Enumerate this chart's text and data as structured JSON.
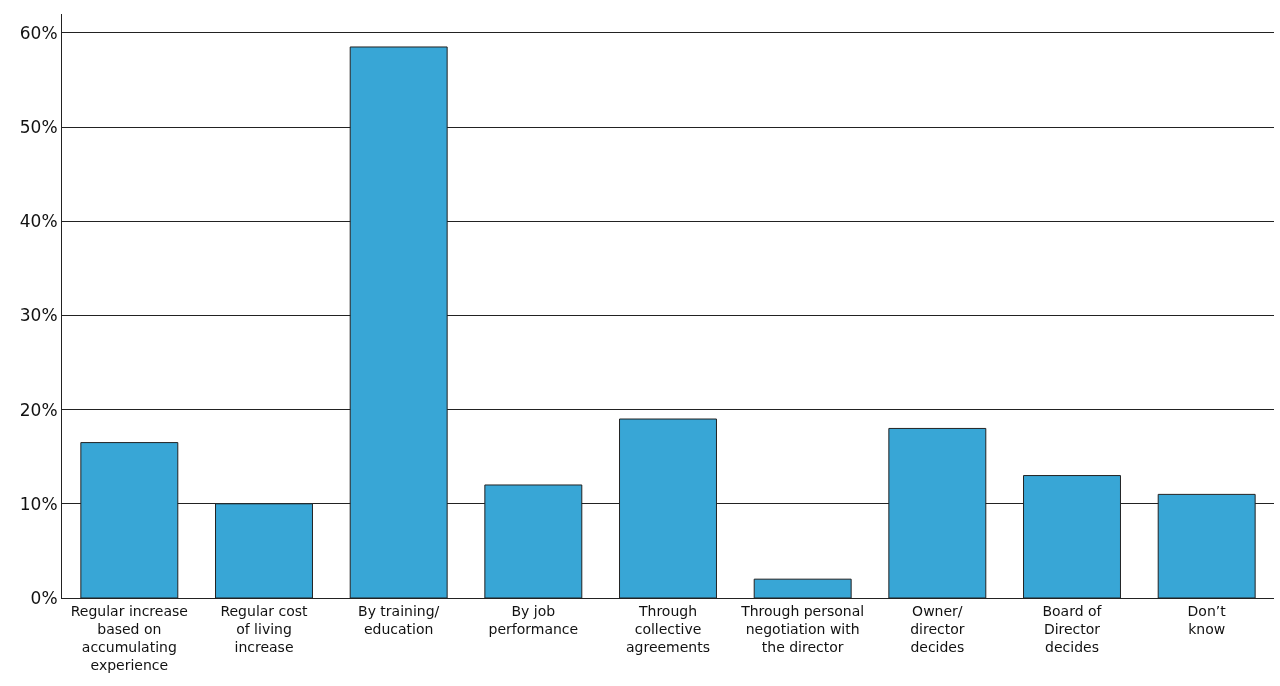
{
  "chart_data": {
    "type": "bar",
    "categories": [
      "Regular increase\nbased on\naccumulating\nexperience",
      "Regular cost\nof living\nincrease",
      "By training/\neducation",
      "By job\nperformance",
      "Through\ncollective\nagreements",
      "Through personal\nnegotiation with\nthe director",
      "Owner/\ndirector\ndecides",
      "Board of\nDirector\ndecides",
      "Don’t\nknow"
    ],
    "values": [
      16.5,
      10,
      58.5,
      12,
      19,
      2,
      18,
      13,
      11
    ],
    "color": "#38a6d6",
    "ylim": [
      0,
      62
    ],
    "yticks": [
      {
        "value": 0,
        "label": "0%"
      },
      {
        "value": 10,
        "label": "10%"
      },
      {
        "value": 20,
        "label": "20%"
      },
      {
        "value": 30,
        "label": "30%"
      },
      {
        "value": 40,
        "label": "40%"
      },
      {
        "value": 50,
        "label": "50%"
      },
      {
        "value": 60,
        "label": "60%"
      }
    ],
    "grid": "y"
  }
}
